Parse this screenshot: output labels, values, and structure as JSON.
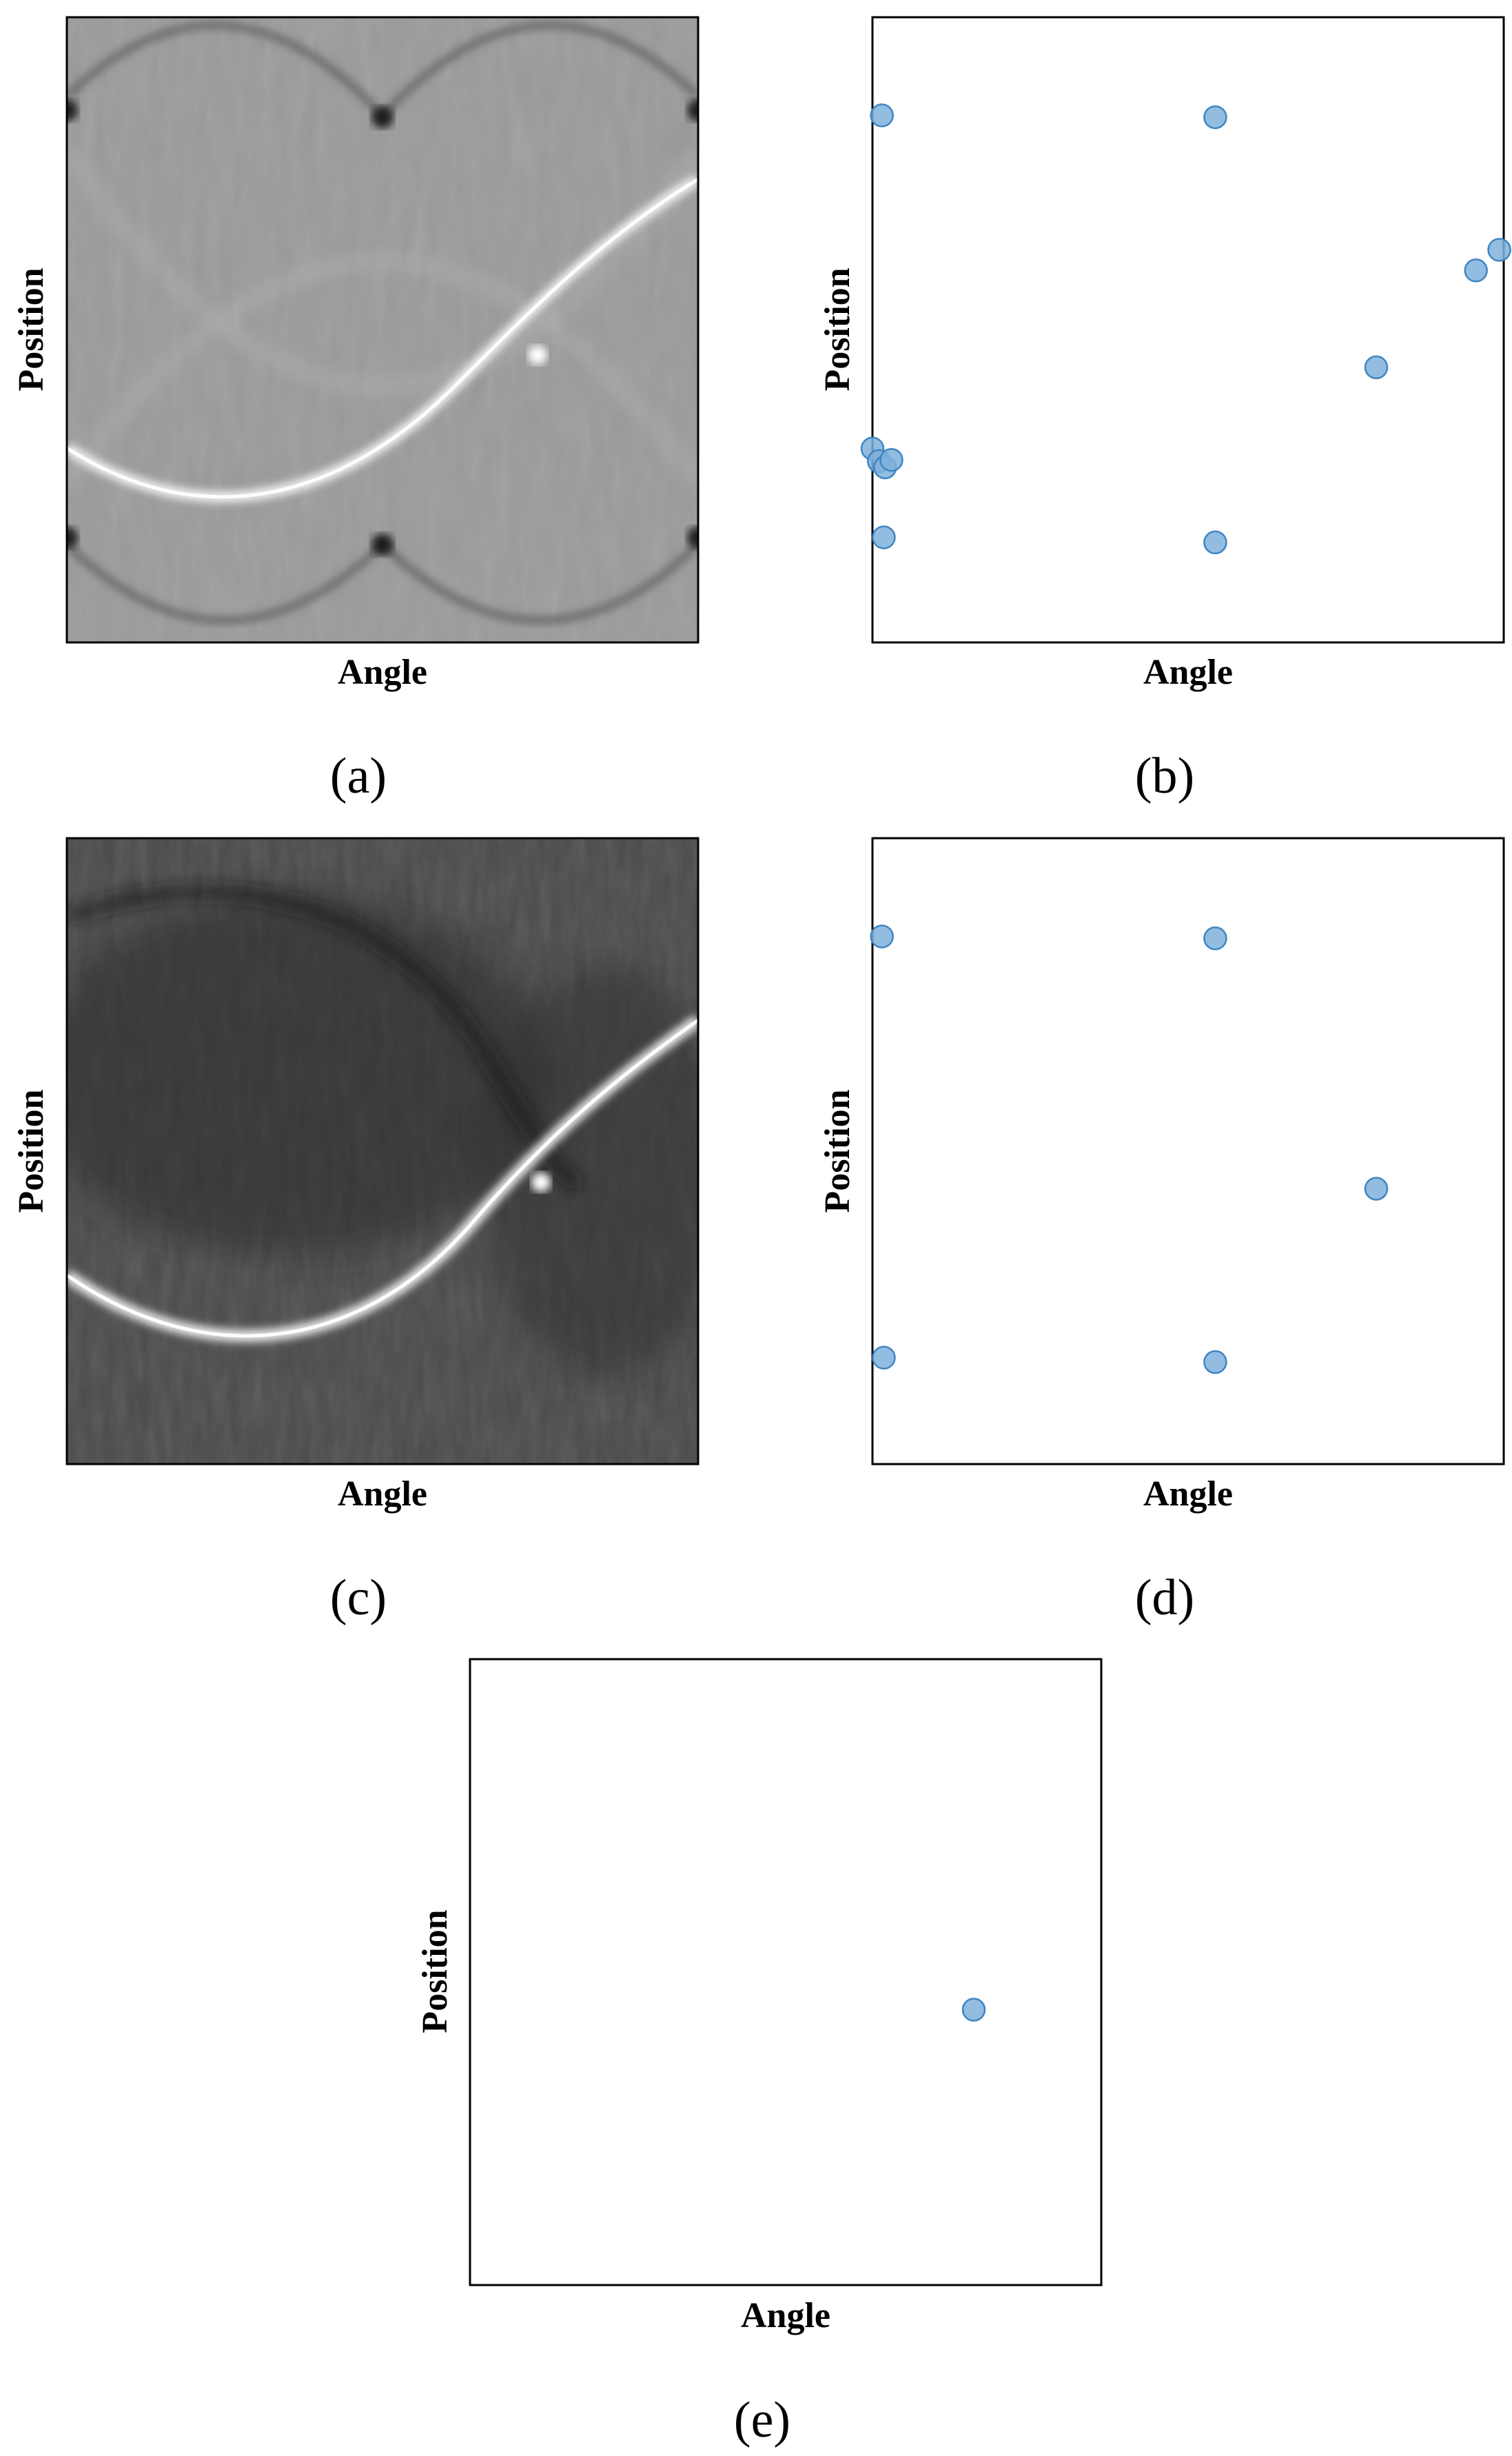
{
  "colors": {
    "point_fill": "#7fb0da",
    "point_stroke": "#3f86c3",
    "axis": "#000000"
  },
  "chart_data": [
    {
      "id": "a",
      "type": "heatmap",
      "panel_label": "(a)",
      "xlabel": "Angle",
      "ylabel": "Position",
      "image": "sinogram with multiple sinusoidal traces on mid-gray background",
      "grid": false
    },
    {
      "id": "b",
      "type": "scatter",
      "panel_label": "(b)",
      "xlabel": "Angle",
      "ylabel": "Position",
      "xlim": [
        0,
        1
      ],
      "ylim": [
        0,
        1
      ],
      "grid": false,
      "points": [
        {
          "x": 0.015,
          "y": 0.843
        },
        {
          "x": 0.543,
          "y": 0.84
        },
        {
          "x": 0.956,
          "y": 0.595
        },
        {
          "x": 0.993,
          "y": 0.628
        },
        {
          "x": 0.798,
          "y": 0.44
        },
        {
          "x": 0.0,
          "y": 0.31
        },
        {
          "x": 0.01,
          "y": 0.29
        },
        {
          "x": 0.02,
          "y": 0.28
        },
        {
          "x": 0.03,
          "y": 0.292
        },
        {
          "x": 0.018,
          "y": 0.168
        },
        {
          "x": 0.543,
          "y": 0.16
        }
      ]
    },
    {
      "id": "c",
      "type": "heatmap",
      "panel_label": "(c)",
      "xlabel": "Angle",
      "ylabel": "Position",
      "image": "sinogram with one dominant bright sinusoidal trace on dark background",
      "grid": false
    },
    {
      "id": "d",
      "type": "scatter",
      "panel_label": "(d)",
      "xlabel": "Angle",
      "ylabel": "Position",
      "xlim": [
        0,
        1
      ],
      "ylim": [
        0,
        1
      ],
      "grid": false,
      "points": [
        {
          "x": 0.015,
          "y": 0.843
        },
        {
          "x": 0.543,
          "y": 0.84
        },
        {
          "x": 0.798,
          "y": 0.44
        },
        {
          "x": 0.018,
          "y": 0.17
        },
        {
          "x": 0.543,
          "y": 0.163
        }
      ]
    },
    {
      "id": "e",
      "type": "scatter",
      "panel_label": "(e)",
      "xlabel": "Angle",
      "ylabel": "Position",
      "xlim": [
        0,
        1
      ],
      "ylim": [
        0,
        1
      ],
      "grid": false,
      "points": [
        {
          "x": 0.798,
          "y": 0.44
        }
      ]
    }
  ]
}
